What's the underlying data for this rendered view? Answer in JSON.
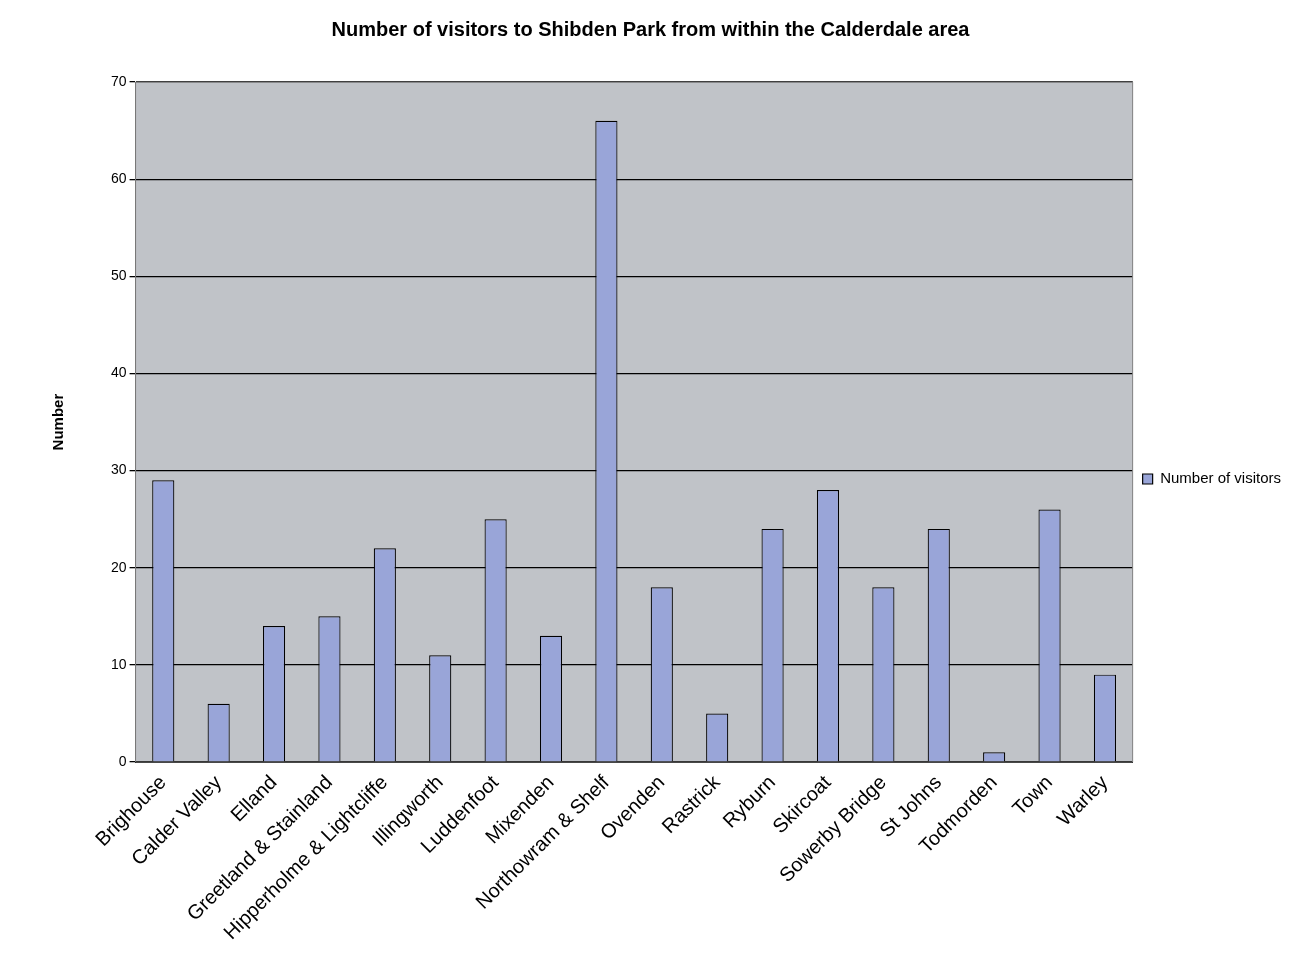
{
  "chart_data": {
    "type": "bar",
    "title": "Number of visitors to Shibden Park from within the Calderdale area",
    "ylabel": "Number",
    "categories": [
      "Brighouse",
      "Calder Valley",
      "Elland",
      "Greetland & Stainland",
      "Hipperholme & Lightcliffe",
      "Illingworth",
      "Luddenfoot",
      "Mixenden",
      "Northowram & Shelf",
      "Ovenden",
      "Rastrick",
      "Ryburn",
      "Skircoat",
      "Sowerby Bridge",
      "St Johns",
      "Todmorden",
      "Town",
      "Warley"
    ],
    "series": [
      {
        "name": "Number of visitors",
        "color": "#99a5d8",
        "values": [
          29,
          6,
          14,
          15,
          22,
          11,
          25,
          13,
          66,
          18,
          5,
          24,
          28,
          18,
          24,
          1,
          26,
          9
        ]
      }
    ],
    "ylim": [
      0,
      70
    ],
    "yticks": [
      0,
      10,
      20,
      30,
      40,
      50,
      60,
      70
    ],
    "grid": "y",
    "legend": "right"
  }
}
